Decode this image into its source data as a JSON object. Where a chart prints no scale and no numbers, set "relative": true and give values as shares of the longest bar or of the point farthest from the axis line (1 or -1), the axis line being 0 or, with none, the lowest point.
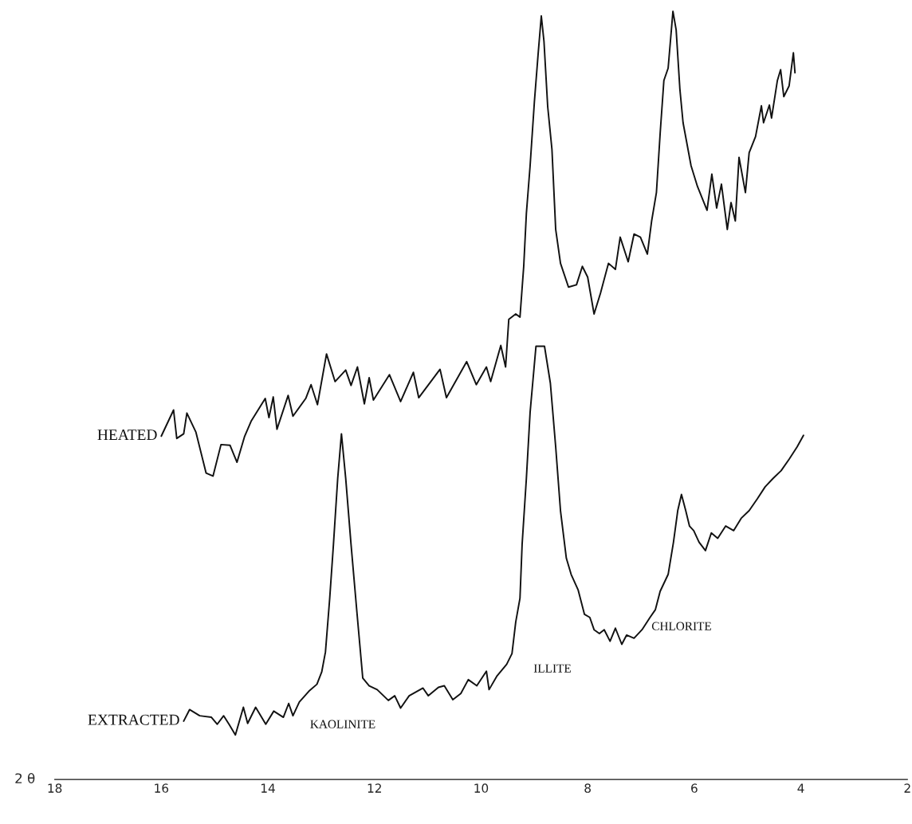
{
  "chart_data": {
    "type": "line",
    "relative": true,
    "xlabel": "2 θ",
    "xlim": [
      18,
      2
    ],
    "xticks": [
      18,
      16,
      14,
      12,
      10,
      8,
      6,
      4,
      2
    ],
    "tick_labels": "x",
    "grid": false,
    "legend": false,
    "marker": "none",
    "line_style": "solid",
    "series": [
      {
        "name": "HEATED",
        "color": "#111111",
        "x": [
          16.0,
          15.77,
          15.71,
          15.58,
          15.52,
          15.35,
          15.16,
          15.03,
          14.88,
          14.71,
          14.58,
          14.44,
          14.31,
          14.05,
          13.98,
          13.9,
          13.83,
          13.62,
          13.53,
          13.29,
          13.19,
          13.07,
          12.9,
          12.74,
          12.54,
          12.44,
          12.32,
          12.19,
          12.1,
          12.02,
          11.72,
          11.51,
          11.27,
          11.17,
          10.77,
          10.65,
          10.27,
          10.09,
          9.9,
          9.82,
          9.63,
          9.54,
          9.48,
          9.35,
          9.27,
          9.2,
          9.15,
          9.08,
          9.0,
          8.93,
          8.87,
          8.82,
          8.75,
          8.67,
          8.6,
          8.51,
          8.36,
          8.21,
          8.1,
          8.0,
          7.88,
          7.76,
          7.61,
          7.48,
          7.39,
          7.24,
          7.13,
          7.01,
          6.88,
          6.8,
          6.71,
          6.64,
          6.57,
          6.49,
          6.4,
          6.34,
          6.27,
          6.21,
          6.06,
          5.94,
          5.76,
          5.67,
          5.58,
          5.49,
          5.38,
          5.31,
          5.23,
          5.16,
          5.04,
          4.97,
          4.85,
          4.74,
          4.7,
          4.59,
          4.55,
          4.44,
          4.38,
          4.32,
          4.22,
          4.14,
          4.11
        ],
        "values": [
          0.447,
          0.481,
          0.444,
          0.45,
          0.477,
          0.452,
          0.399,
          0.395,
          0.436,
          0.435,
          0.413,
          0.446,
          0.467,
          0.496,
          0.471,
          0.498,
          0.456,
          0.5,
          0.473,
          0.496,
          0.514,
          0.488,
          0.554,
          0.518,
          0.533,
          0.513,
          0.537,
          0.489,
          0.523,
          0.494,
          0.527,
          0.492,
          0.53,
          0.497,
          0.534,
          0.497,
          0.544,
          0.514,
          0.537,
          0.518,
          0.565,
          0.537,
          0.599,
          0.606,
          0.602,
          0.668,
          0.737,
          0.799,
          0.882,
          0.944,
          0.994,
          0.961,
          0.876,
          0.82,
          0.716,
          0.672,
          0.641,
          0.644,
          0.668,
          0.654,
          0.606,
          0.633,
          0.672,
          0.664,
          0.706,
          0.674,
          0.71,
          0.706,
          0.684,
          0.727,
          0.764,
          0.841,
          0.91,
          0.926,
          1.0,
          0.976,
          0.899,
          0.855,
          0.799,
          0.772,
          0.741,
          0.788,
          0.744,
          0.775,
          0.716,
          0.751,
          0.727,
          0.81,
          0.764,
          0.816,
          0.837,
          0.877,
          0.855,
          0.878,
          0.861,
          0.91,
          0.924,
          0.889,
          0.903,
          0.946,
          0.92
        ]
      },
      {
        "name": "EXTRACTED",
        "color": "#111111",
        "x": [
          15.58,
          15.47,
          15.28,
          15.06,
          14.95,
          14.83,
          14.73,
          14.61,
          14.46,
          14.38,
          14.23,
          14.04,
          13.89,
          13.71,
          13.61,
          13.53,
          13.41,
          13.23,
          13.08,
          12.99,
          12.92,
          12.84,
          12.77,
          12.69,
          12.62,
          12.54,
          12.44,
          12.33,
          12.22,
          12.1,
          11.95,
          11.74,
          11.62,
          11.51,
          11.35,
          11.09,
          10.99,
          10.8,
          10.69,
          10.53,
          10.38,
          10.24,
          10.08,
          9.9,
          9.85,
          9.7,
          9.52,
          9.42,
          9.35,
          9.27,
          9.23,
          9.15,
          9.08,
          8.97,
          8.81,
          8.7,
          8.6,
          8.51,
          8.4,
          8.31,
          8.18,
          8.06,
          7.96,
          7.88,
          7.78,
          7.69,
          7.58,
          7.48,
          7.36,
          7.27,
          7.13,
          6.98,
          6.83,
          6.73,
          6.64,
          6.49,
          6.39,
          6.31,
          6.24,
          6.16,
          6.09,
          6.01,
          5.91,
          5.79,
          5.68,
          5.56,
          5.41,
          5.26,
          5.12,
          4.97,
          4.82,
          4.67,
          4.52,
          4.37,
          4.22,
          4.07,
          3.95
        ],
        "values": [
          0.076,
          0.091,
          0.083,
          0.081,
          0.072,
          0.083,
          0.072,
          0.058,
          0.094,
          0.073,
          0.094,
          0.072,
          0.089,
          0.081,
          0.099,
          0.083,
          0.101,
          0.115,
          0.124,
          0.14,
          0.166,
          0.236,
          0.306,
          0.392,
          0.45,
          0.392,
          0.306,
          0.218,
          0.132,
          0.122,
          0.117,
          0.103,
          0.109,
          0.093,
          0.109,
          0.119,
          0.109,
          0.12,
          0.122,
          0.104,
          0.112,
          0.13,
          0.122,
          0.141,
          0.117,
          0.135,
          0.15,
          0.164,
          0.205,
          0.236,
          0.306,
          0.392,
          0.478,
          0.564,
          0.564,
          0.516,
          0.433,
          0.35,
          0.288,
          0.267,
          0.247,
          0.215,
          0.211,
          0.195,
          0.19,
          0.195,
          0.18,
          0.197,
          0.176,
          0.188,
          0.184,
          0.195,
          0.211,
          0.221,
          0.245,
          0.267,
          0.309,
          0.35,
          0.371,
          0.35,
          0.33,
          0.324,
          0.309,
          0.298,
          0.321,
          0.314,
          0.33,
          0.324,
          0.34,
          0.35,
          0.365,
          0.381,
          0.392,
          0.402,
          0.417,
          0.433,
          0.448
        ]
      }
    ],
    "annotations": [
      "KAOLINITE",
      "ILLITE",
      "CHLORITE"
    ]
  }
}
